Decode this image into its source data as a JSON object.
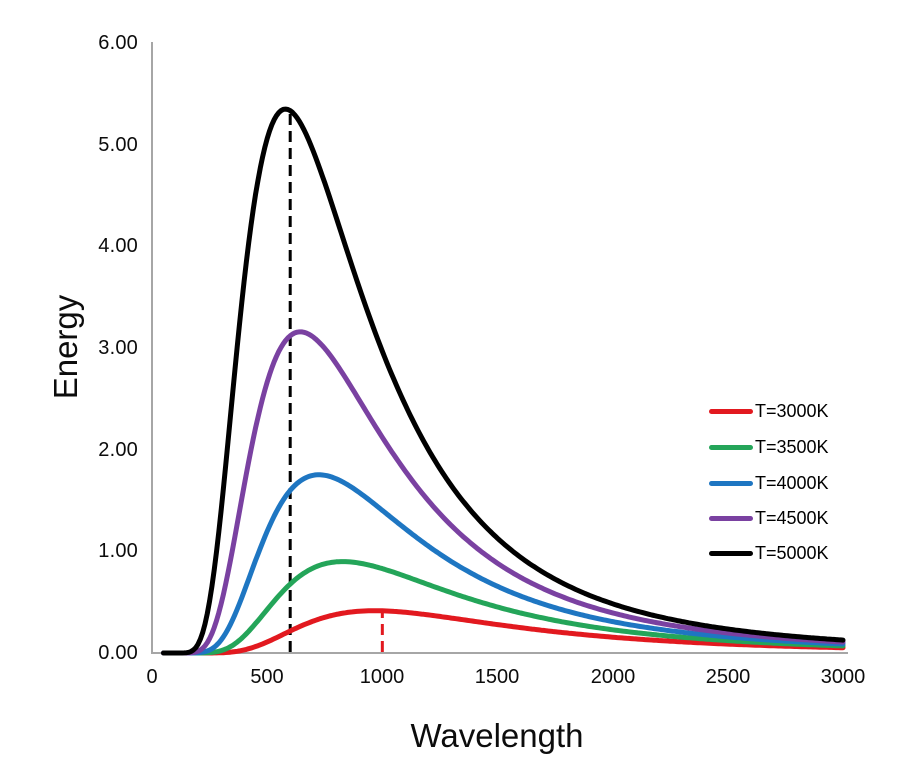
{
  "figure": {
    "background": "#ffffff",
    "axis_color": "#a6a6a6",
    "text_color": "#0c0c0c"
  },
  "chart_data": {
    "type": "line",
    "title": "",
    "xlabel": "Wavelength",
    "ylabel": "Energy",
    "xlim": [
      0,
      3000
    ],
    "ylim": [
      0,
      6
    ],
    "grid": false,
    "legend_position": "middle-right",
    "x_ticks": [
      "0",
      "500",
      "1000",
      "1500",
      "2000",
      "2500",
      "3000"
    ],
    "y_ticks": [
      "6.00",
      "5.00",
      "4.00",
      "3.00",
      "2.00",
      "1.00",
      "0.00"
    ],
    "model": {
      "name": "planck-blackbody",
      "formula": "Energy(wavelength,T) = scale / (wavelength^5 * (exp(hc_over_k / (wavelength * T)) - 1))",
      "hc_over_k": 14388000,
      "scale": 4.979e+16,
      "wavelength_start": 50,
      "wavelength_end": 3000,
      "wavelength_step": 10
    },
    "series": [
      {
        "label": "T=3000K",
        "temperature": 3000,
        "color": "#e2191f",
        "peak_wavelength": 966,
        "peak_value": 0.42
      },
      {
        "label": "T=3500K",
        "temperature": 3500,
        "color": "#24a559",
        "peak_wavelength": 828,
        "peak_value": 0.9
      },
      {
        "label": "T=4000K",
        "temperature": 4000,
        "color": "#1e76c2",
        "peak_wavelength": 725,
        "peak_value": 1.78
      },
      {
        "label": "T=4500K",
        "temperature": 4500,
        "color": "#7a41a1",
        "peak_wavelength": 644,
        "peak_value": 3.16
      },
      {
        "label": "T=5000K",
        "temperature": 5000,
        "color": "#000000",
        "peak_wavelength": 580,
        "peak_value": 5.35
      }
    ],
    "sample_x": [
      500,
      1000,
      1500,
      2000,
      2500,
      3000
    ],
    "samples": {
      "T=3000K": [
        0.109,
        0.415,
        0.279,
        0.156,
        0.088,
        0.052
      ],
      "T=3500K": [
        0.428,
        0.83,
        0.452,
        0.228,
        0.122,
        0.07
      ],
      "T=4000K": [
        1.198,
        1.403,
        0.656,
        0.309,
        0.159,
        0.088
      ],
      "T=4500K": [
        2.666,
        2.121,
        0.883,
        0.394,
        0.197,
        0.108
      ],
      "T=5000K": [
        5.061,
        2.969,
        1.129,
        0.484,
        0.236,
        0.127
      ]
    },
    "peak_markers": [
      {
        "x": 600,
        "series_label": "T=5000K",
        "color": "#000000",
        "style": "dashed"
      },
      {
        "x": 1000,
        "series_label": "T=3000K",
        "color": "#e2191f",
        "style": "dashed"
      }
    ]
  }
}
